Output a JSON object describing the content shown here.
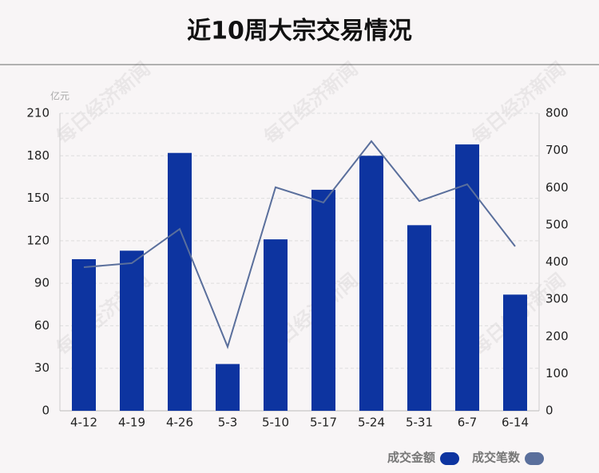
{
  "chart_data": {
    "type": "bar",
    "title": "近10周大宗交易情况",
    "y_unit": "亿元",
    "watermark": "每日经济新闻",
    "categories": [
      "4-12",
      "4-19",
      "4-26",
      "5-3",
      "5-10",
      "5-17",
      "5-24",
      "5-31",
      "6-7",
      "6-14"
    ],
    "series": [
      {
        "name": "成交金额",
        "color": "#0d34a0",
        "type": "bar",
        "values": [
          107,
          113,
          182,
          33,
          121,
          156,
          180,
          131,
          188,
          82
        ]
      },
      {
        "name": "成交笔数",
        "color": "#5a6f9c",
        "type": "line",
        "axis": "y2",
        "values": [
          386,
          397,
          489,
          172,
          601,
          560,
          725,
          564,
          609,
          442
        ]
      }
    ],
    "ylim": [
      0,
      210
    ],
    "yticks": [
      0,
      30,
      60,
      90,
      120,
      150,
      180,
      210
    ],
    "y2lim": [
      0,
      800
    ],
    "y2ticks": [
      0,
      100,
      200,
      300,
      400,
      500,
      600,
      700,
      800
    ],
    "grid": true
  }
}
